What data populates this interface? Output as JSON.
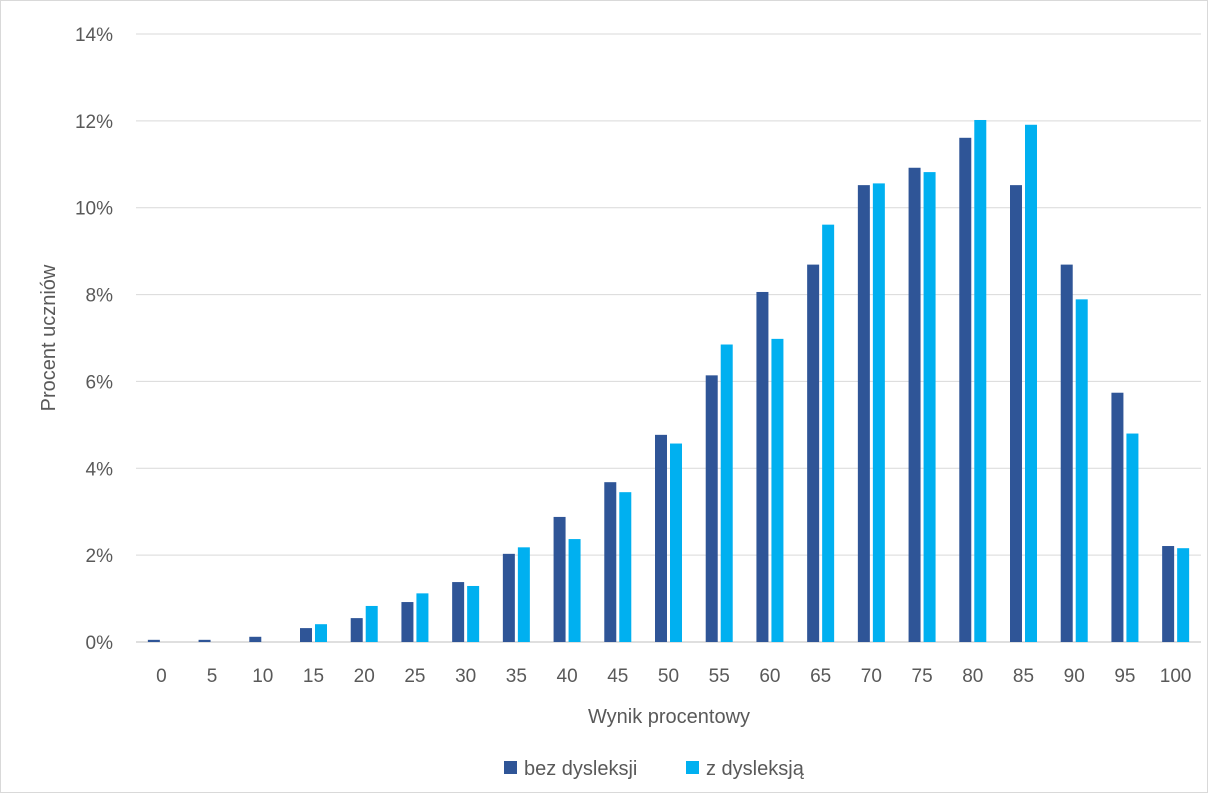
{
  "chart_data": {
    "type": "bar",
    "xlabel": "Wynik procentowy",
    "ylabel": "Procent uczniów",
    "ylim": [
      0,
      14
    ],
    "yticks": [
      "0%",
      "2%",
      "4%",
      "6%",
      "8%",
      "10%",
      "12%",
      "14%"
    ],
    "grid": true,
    "legend_position": "bottom",
    "categories": [
      "0",
      "5",
      "10",
      "15",
      "20",
      "25",
      "30",
      "35",
      "40",
      "45",
      "50",
      "55",
      "60",
      "65",
      "70",
      "75",
      "80",
      "85",
      "90",
      "95",
      "100"
    ],
    "series": [
      {
        "name": "bez dysleksji",
        "color": "#2f5597",
        "values": [
          0.05,
          0.05,
          0.12,
          0.32,
          0.55,
          0.92,
          1.38,
          2.03,
          2.88,
          3.68,
          4.77,
          6.14,
          8.06,
          8.69,
          10.52,
          10.92,
          11.61,
          10.52,
          8.69,
          5.74,
          2.21
        ]
      },
      {
        "name": "z dysleksją",
        "color": "#00b0f0",
        "values": [
          0,
          0,
          0,
          0.41,
          0.83,
          1.12,
          1.29,
          2.18,
          2.37,
          3.45,
          4.57,
          6.85,
          6.98,
          9.61,
          10.56,
          10.82,
          12.02,
          11.91,
          7.89,
          4.8,
          2.16
        ]
      }
    ]
  }
}
